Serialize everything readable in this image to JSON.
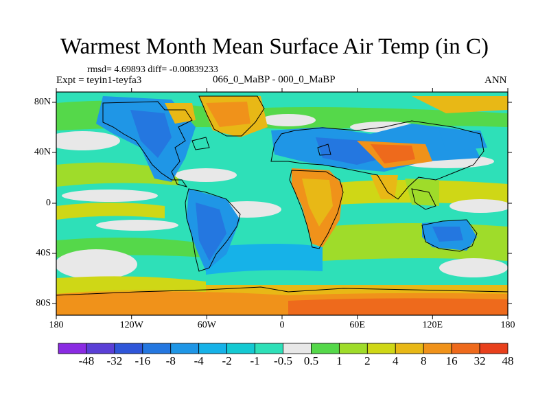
{
  "title": "Warmest Month Mean Surface Air Temp (in C)",
  "stats": "rmsd= 4.69893 diff= -0.00839233",
  "expt": "Expt = teyin1-teyfa3",
  "comparison": "066_0_MaBP - 000_0_MaBP",
  "season": "ANN",
  "lon_labels": [
    "180",
    "120W",
    "60W",
    "0",
    "60E",
    "120E",
    "180"
  ],
  "lat_labels": [
    "80N",
    "40N",
    "0",
    "40S",
    "80S"
  ],
  "colorbar": {
    "labels": [
      "-48",
      "-32",
      "-16",
      "-8",
      "-4",
      "-2",
      "-1",
      "-0.5",
      "0.5",
      "1",
      "2",
      "4",
      "8",
      "16",
      "32",
      "48"
    ],
    "colors": [
      "#8a2be2",
      "#5a3fd6",
      "#2f56d9",
      "#2477e0",
      "#1f96e6",
      "#16b2e8",
      "#14c9d2",
      "#2ee0b8",
      "#e8e8e8",
      "#55d84a",
      "#9fdc2a",
      "#cfd716",
      "#e8b816",
      "#f0921a",
      "#ee6a1c",
      "#e8401c"
    ]
  },
  "colors": {
    "land_outline": "#000000",
    "neutral_band": "#e8e8e8"
  }
}
